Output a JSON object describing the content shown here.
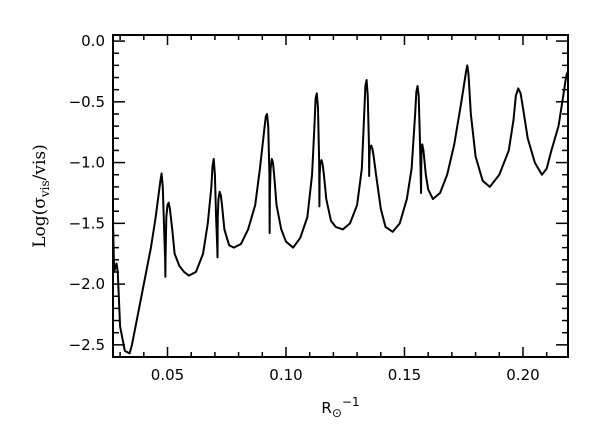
{
  "chart_data": {
    "type": "line",
    "xlabel": {
      "base": "R",
      "sub": "⊙",
      "sup": "−1"
    },
    "ylabel": {
      "pre": "Log(σ",
      "sub": "vis",
      "post": "/vis)"
    },
    "xlim": [
      0.027,
      0.219
    ],
    "ylim": [
      -2.6,
      0.05
    ],
    "x_ticks": [
      0.05,
      0.1,
      0.15,
      0.2
    ],
    "x_tick_labels": [
      "0.05",
      "0.10",
      "0.15",
      "0.20"
    ],
    "y_ticks": [
      0.0,
      -0.5,
      -1.0,
      -1.5,
      -2.0,
      -2.5
    ],
    "y_tick_labels": [
      "0.0",
      "−0.5",
      "−1.0",
      "−1.5",
      "−2.0",
      "−2.5"
    ],
    "grid": false,
    "series": [
      {
        "x": [
          0.027,
          0.0275,
          0.028,
          0.0285,
          0.029,
          0.03,
          0.032,
          0.034,
          0.035,
          0.037,
          0.039,
          0.041,
          0.043,
          0.045,
          0.046,
          0.047,
          0.0475,
          0.048,
          0.0485,
          0.049,
          0.0491,
          0.0492,
          0.0495,
          0.05,
          0.0505,
          0.051,
          0.052,
          0.053,
          0.055,
          0.057,
          0.059,
          0.062,
          0.065,
          0.067,
          0.0685,
          0.069,
          0.0695,
          0.07,
          0.0705,
          0.071,
          0.0711,
          0.0712,
          0.0715,
          0.072,
          0.0725,
          0.073,
          0.074,
          0.076,
          0.078,
          0.081,
          0.084,
          0.087,
          0.089,
          0.091,
          0.0915,
          0.092,
          0.0925,
          0.093,
          0.0931,
          0.0932,
          0.0935,
          0.094,
          0.0945,
          0.095,
          0.096,
          0.098,
          0.1,
          0.103,
          0.106,
          0.109,
          0.111,
          0.112,
          0.1125,
          0.113,
          0.1135,
          0.114,
          0.1141,
          0.1142,
          0.1145,
          0.115,
          0.1155,
          0.116,
          0.117,
          0.119,
          0.121,
          0.124,
          0.127,
          0.13,
          0.132,
          0.133,
          0.1335,
          0.134,
          0.1345,
          0.135,
          0.1351,
          0.1352,
          0.1355,
          0.136,
          0.1365,
          0.137,
          0.138,
          0.14,
          0.142,
          0.145,
          0.148,
          0.151,
          0.153,
          0.1545,
          0.155,
          0.1555,
          0.156,
          0.1565,
          0.157,
          0.1571,
          0.1572,
          0.1575,
          0.158,
          0.1585,
          0.159,
          0.16,
          0.162,
          0.165,
          0.168,
          0.171,
          0.174,
          0.176,
          0.1765,
          0.177,
          0.178,
          0.18,
          0.183,
          0.186,
          0.19,
          0.194,
          0.196,
          0.197,
          0.198,
          0.199,
          0.2,
          0.202,
          0.205,
          0.208,
          0.21,
          0.212,
          0.215,
          0.217,
          0.218,
          0.2185,
          0.219
        ],
        "y": [
          -1.5,
          -1.9,
          -1.86,
          -1.83,
          -1.9,
          -2.35,
          -2.55,
          -2.57,
          -2.5,
          -2.3,
          -2.1,
          -1.9,
          -1.7,
          -1.45,
          -1.3,
          -1.15,
          -1.09,
          -1.2,
          -1.5,
          -1.8,
          -1.94,
          -1.75,
          -1.45,
          -1.35,
          -1.33,
          -1.38,
          -1.55,
          -1.75,
          -1.85,
          -1.9,
          -1.93,
          -1.9,
          -1.75,
          -1.5,
          -1.2,
          -1.03,
          -0.97,
          -1.1,
          -1.45,
          -1.7,
          -1.78,
          -1.45,
          -1.3,
          -1.24,
          -1.27,
          -1.35,
          -1.55,
          -1.68,
          -1.7,
          -1.67,
          -1.55,
          -1.35,
          -1.05,
          -0.7,
          -0.62,
          -0.6,
          -0.7,
          -1.1,
          -1.58,
          -1.25,
          -1.05,
          -0.97,
          -1.0,
          -1.1,
          -1.35,
          -1.55,
          -1.65,
          -1.7,
          -1.62,
          -1.45,
          -1.1,
          -0.7,
          -0.47,
          -0.43,
          -0.55,
          -1.0,
          -1.36,
          -1.1,
          -1.0,
          -0.98,
          -1.02,
          -1.1,
          -1.3,
          -1.48,
          -1.53,
          -1.55,
          -1.5,
          -1.35,
          -1.05,
          -0.6,
          -0.37,
          -0.32,
          -0.45,
          -0.85,
          -1.11,
          -0.95,
          -0.87,
          -0.86,
          -0.89,
          -0.95,
          -1.1,
          -1.38,
          -1.53,
          -1.57,
          -1.5,
          -1.3,
          -1.05,
          -0.6,
          -0.42,
          -0.37,
          -0.45,
          -0.8,
          -1.25,
          -1.0,
          -0.88,
          -0.85,
          -0.9,
          -1.0,
          -1.1,
          -1.22,
          -1.3,
          -1.25,
          -1.1,
          -0.85,
          -0.5,
          -0.25,
          -0.2,
          -0.27,
          -0.6,
          -0.95,
          -1.15,
          -1.2,
          -1.1,
          -0.9,
          -0.65,
          -0.45,
          -0.39,
          -0.43,
          -0.55,
          -0.8,
          -1.0,
          -1.1,
          -1.05,
          -0.9,
          -0.7,
          -0.45,
          -0.32,
          -0.27,
          -0.25
        ]
      }
    ]
  }
}
